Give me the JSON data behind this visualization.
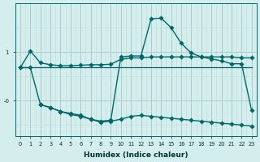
{
  "xlabel": "Humidex (Indice chaleur)",
  "background_color": "#d4eeee",
  "grid_color_major": "#aacccc",
  "grid_color_minor": "#bedddd",
  "line_color": "#006868",
  "x_ticks": [
    0,
    1,
    2,
    3,
    4,
    5,
    6,
    7,
    8,
    9,
    10,
    11,
    12,
    13,
    14,
    15,
    16,
    17,
    18,
    19,
    20,
    21,
    22,
    23
  ],
  "line_A_x": [
    0,
    1,
    2,
    3,
    4,
    5,
    6,
    7,
    8,
    9,
    10,
    11,
    12,
    13,
    14,
    15,
    16,
    17,
    18,
    19,
    20,
    21,
    22,
    23
  ],
  "line_A_y": [
    0.68,
    1.02,
    0.78,
    0.74,
    0.72,
    0.72,
    0.73,
    0.74,
    0.74,
    0.75,
    0.85,
    0.88,
    0.88,
    0.9,
    0.9,
    0.9,
    0.9,
    0.9,
    0.9,
    0.9,
    0.9,
    0.9,
    0.88,
    0.88
  ],
  "line_B_x": [
    0,
    1,
    2,
    3,
    4,
    5,
    6,
    7,
    8,
    9,
    10,
    11,
    12,
    13,
    14,
    15,
    16,
    17,
    18,
    19,
    20,
    21,
    22,
    23
  ],
  "line_B_y": [
    0.68,
    0.68,
    0.68,
    0.68,
    0.68,
    0.68,
    0.68,
    0.68,
    0.68,
    0.68,
    0.68,
    0.68,
    0.68,
    0.68,
    0.68,
    0.68,
    0.68,
    0.68,
    0.68,
    0.68,
    0.68,
    0.68,
    0.68,
    0.68
  ],
  "line_C_x": [
    0,
    1,
    2,
    3,
    4,
    5,
    6,
    7,
    8,
    9,
    10,
    11,
    12,
    13,
    14,
    15,
    16,
    17,
    18,
    19,
    20,
    21,
    22,
    23
  ],
  "line_C_y": [
    0.68,
    0.68,
    -0.08,
    -0.14,
    -0.22,
    -0.26,
    -0.3,
    -0.38,
    -0.42,
    -0.4,
    0.9,
    0.92,
    0.92,
    1.68,
    1.7,
    1.5,
    1.18,
    0.98,
    0.9,
    0.86,
    0.82,
    0.76,
    0.76,
    -0.2
  ],
  "line_D_x": [
    2,
    3,
    4,
    5,
    6,
    7,
    8,
    9,
    10,
    11,
    12,
    13,
    14,
    15,
    16,
    17,
    18,
    19,
    20,
    21,
    22,
    23
  ],
  "line_D_y": [
    -0.08,
    -0.14,
    -0.22,
    -0.28,
    -0.32,
    -0.38,
    -0.44,
    -0.42,
    -0.38,
    -0.32,
    -0.3,
    -0.32,
    -0.34,
    -0.36,
    -0.38,
    -0.4,
    -0.42,
    -0.44,
    -0.46,
    -0.48,
    -0.5,
    -0.52
  ],
  "ytick_vals": [
    0.0,
    1.0
  ],
  "ytick_labels": [
    "-0",
    "1"
  ],
  "ylim": [
    -0.72,
    2.0
  ],
  "xlim": [
    -0.5,
    23.5
  ]
}
